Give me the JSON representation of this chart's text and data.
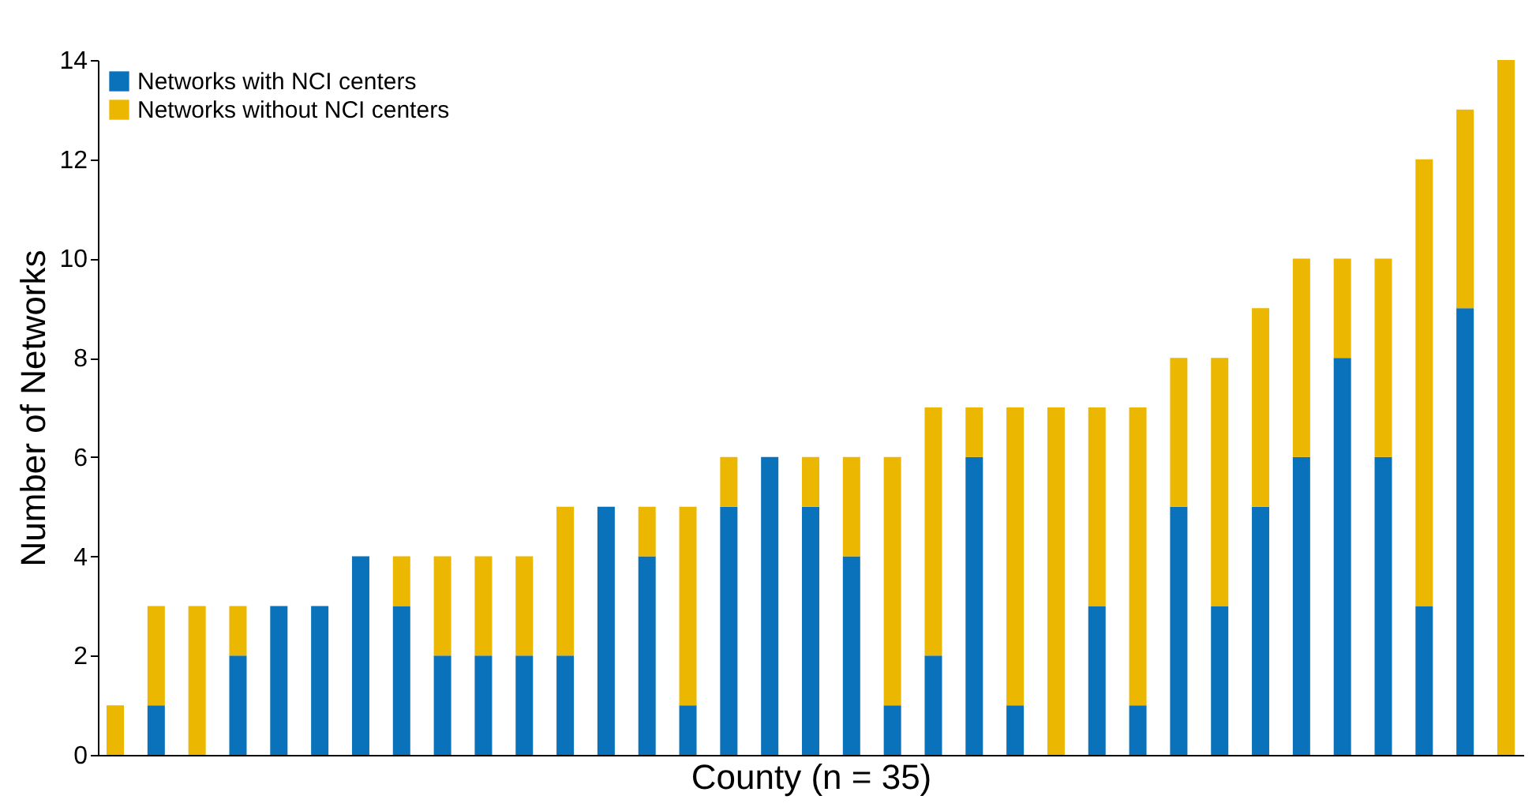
{
  "chart_data": {
    "type": "bar",
    "stacked": true,
    "xlabel": "County (n = 35)",
    "ylabel": "Number of Networks",
    "categories": [
      null,
      null,
      null,
      null,
      null,
      null,
      null,
      null,
      null,
      null,
      null,
      null,
      null,
      null,
      null,
      null,
      null,
      null,
      null,
      null,
      null,
      null,
      null,
      null,
      null,
      null,
      null,
      null,
      null,
      null,
      null,
      null,
      null,
      null,
      null
    ],
    "series": [
      {
        "name": "Networks with NCI centers",
        "color": "#0a72ba",
        "values": [
          0,
          1,
          0,
          2,
          3,
          3,
          4,
          3,
          2,
          2,
          2,
          2,
          5,
          4,
          1,
          5,
          6,
          5,
          4,
          1,
          2,
          6,
          1,
          0,
          3,
          1,
          5,
          3,
          5,
          6,
          8,
          6,
          3,
          9,
          0
        ]
      },
      {
        "name": "Networks without NCI centers",
        "color": "#ebb700",
        "values": [
          1,
          2,
          3,
          1,
          0,
          0,
          0,
          1,
          2,
          2,
          2,
          3,
          0,
          1,
          4,
          1,
          0,
          1,
          2,
          5,
          5,
          1,
          6,
          7,
          4,
          6,
          3,
          5,
          4,
          4,
          2,
          4,
          9,
          4,
          14
        ]
      }
    ],
    "ylim": [
      0,
      14
    ],
    "yticks": [
      0,
      2,
      4,
      6,
      8,
      10,
      12,
      14
    ],
    "grid": false,
    "legend": "top left",
    "tick_labels": "y"
  }
}
